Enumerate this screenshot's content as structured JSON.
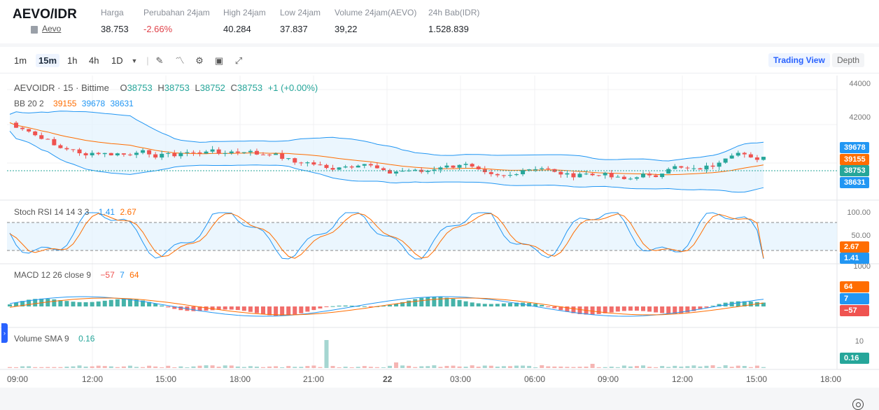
{
  "header": {
    "pair": "AEVO/IDR",
    "link": "Aevo",
    "stats": [
      {
        "label": "Harga",
        "value": "38.753",
        "negative": false
      },
      {
        "label": "Perubahan 24jam",
        "value": "-2.66%",
        "negative": true
      },
      {
        "label": "High 24jam",
        "value": "40.284",
        "negative": false
      },
      {
        "label": "Low 24jam",
        "value": "37.837",
        "negative": false
      },
      {
        "label": "Volume 24jam(AEVO)",
        "value": "39,22",
        "negative": false
      },
      {
        "label": "24h Bab(IDR)",
        "value": "1.528.839",
        "negative": false
      }
    ]
  },
  "toolbar": {
    "timeframes": [
      "1m",
      "15m",
      "1h",
      "4h",
      "1D"
    ],
    "active_timeframe": "15m",
    "view_trading": "Trading View",
    "view_depth": "Depth"
  },
  "legend": {
    "symbol": "AEVOIDR · 15 · Bittime",
    "o_label": "O",
    "o": "38753",
    "h_label": "H",
    "h": "38753",
    "l_label": "L",
    "l": "38752",
    "c_label": "C",
    "c": "38753",
    "change": "+1 (+0.00%)",
    "bb_label": "BB 20 2",
    "bb_mid": "39155",
    "bb_up": "39678",
    "bb_low": "38631",
    "stoch_label": "Stoch RSI 14 14 3 3",
    "stoch_k": "1.41",
    "stoch_d": "2.67",
    "macd_label": "MACD 12 26 close 9",
    "macd_hist": "−57",
    "macd": "7",
    "macd_signal": "64",
    "vol_label": "Volume SMA 9",
    "vol_value": "0.16"
  },
  "axis": {
    "price_ticks": [
      "44000",
      "42000"
    ],
    "stoch_ticks": [
      "100.00",
      "50.00"
    ],
    "macd_top": "1000",
    "vol_tick": "10",
    "tags": {
      "bb_up": "39678",
      "bb_mid": "39155",
      "price": "38753",
      "bb_low": "38631",
      "stoch_d": "2.67",
      "stoch_k": "1.41",
      "macd_signal": "64",
      "macd": "7",
      "macd_hist": "−57",
      "vol": "0.16"
    },
    "time_labels": [
      "09:00",
      "12:00",
      "15:00",
      "18:00",
      "21:00",
      "22",
      "03:00",
      "06:00",
      "09:00",
      "12:00",
      "15:00",
      "18:00"
    ]
  },
  "colors": {
    "up": "#26a69a",
    "down": "#ef5350",
    "bb_band": "#2196f3",
    "bb_mid": "#ff6d00",
    "stoch_k": "#2196f3",
    "stoch_d": "#ff6d00",
    "price_tag": "#26a69a",
    "band_fill": "#e3f2fd"
  }
}
